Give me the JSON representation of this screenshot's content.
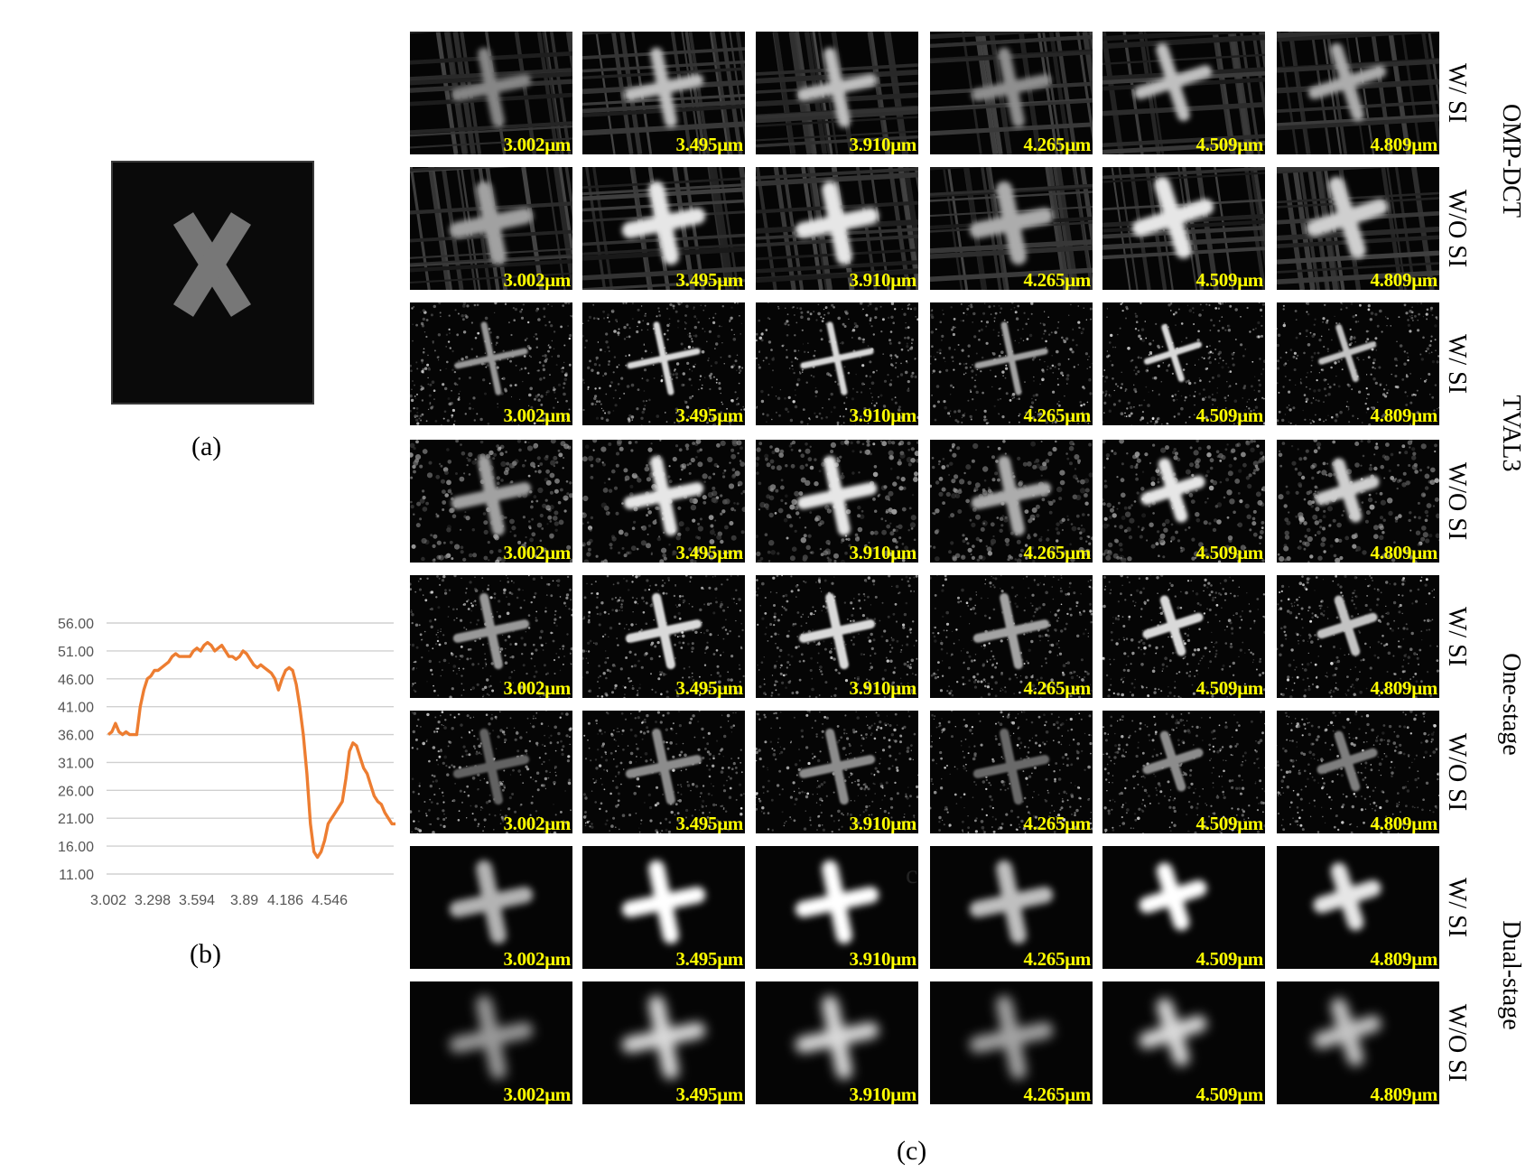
{
  "captions": {
    "a": "(a)",
    "b": "(b)",
    "c": "(c)"
  },
  "panel_a": {
    "glyph": "X"
  },
  "chart_data": {
    "type": "line",
    "title": "",
    "xlabel": "",
    "ylabel": "",
    "ylim": [
      11,
      56
    ],
    "y_ticks": [
      "56.00",
      "51.00",
      "46.00",
      "41.00",
      "36.00",
      "31.00",
      "26.00",
      "21.00",
      "16.00",
      "11.00"
    ],
    "x_ticks": [
      "3.002",
      "3.298",
      "3.594",
      "3.89",
      "4.186",
      "4.546"
    ],
    "grid": true,
    "line_color": "#ed7d31",
    "series": [
      {
        "values": [
          36,
          36.5,
          38,
          36.5,
          36,
          36.5,
          36,
          36,
          36,
          41,
          44,
          46,
          46.5,
          47.5,
          47.5,
          48,
          48.5,
          49,
          50,
          50.5,
          50,
          50,
          50,
          50,
          51,
          51.5,
          51,
          52,
          52.5,
          52,
          51,
          51.5,
          52,
          51,
          50,
          50,
          49.5,
          50,
          51,
          50.5,
          49.5,
          48.5,
          48,
          48.5,
          48,
          47.5,
          47,
          46,
          44,
          46,
          47.5,
          48,
          47.5,
          45,
          41,
          36,
          29,
          20,
          15,
          14,
          15,
          17,
          20,
          21,
          22,
          23,
          24,
          28,
          33,
          34.5,
          34,
          32,
          30,
          29,
          27,
          25,
          24,
          23.5,
          22,
          21,
          20,
          20
        ]
      }
    ]
  },
  "methods": [
    {
      "name": "OMP-DCT",
      "rows": [
        "W/ SI",
        "W/O SI"
      ]
    },
    {
      "name": "TVAL3",
      "rows": [
        "W/ SI",
        "W/O SI"
      ]
    },
    {
      "name": "One-stage",
      "rows": [
        "W/ SI",
        "W/O SI"
      ]
    },
    {
      "name": "Dual-stage",
      "rows": [
        "W/ SI",
        "W/O SI"
      ]
    }
  ],
  "wavelengths": [
    "3.002μm",
    "3.495μm",
    "3.910μm",
    "4.265μm",
    "4.509μm",
    "4.809μm"
  ],
  "stray_mark": "c"
}
